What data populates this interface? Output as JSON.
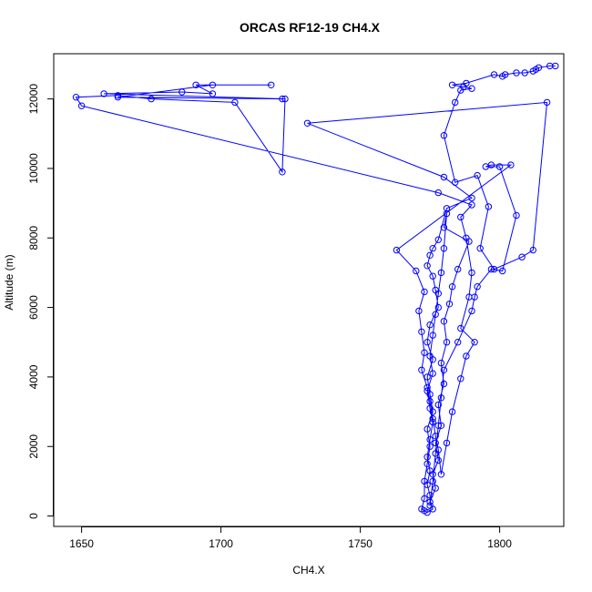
{
  "chart_data": {
    "type": "line",
    "title": "ORCAS RF12-19 CH4.X",
    "xlabel": "CH4.X",
    "ylabel": "Altitude (m)",
    "xlim": [
      1640,
      1823
    ],
    "ylim": [
      -300,
      13300
    ],
    "xticks": [
      1650,
      1700,
      1750,
      1800
    ],
    "yticks": [
      0,
      2000,
      4000,
      6000,
      8000,
      10000,
      12000
    ],
    "grid": false,
    "colors": {
      "series": "#0000ff",
      "axis": "#000000"
    },
    "series": [
      {
        "marker": "open-circle",
        "points": [
          [
            1820,
            12950
          ],
          [
            1818,
            12950
          ],
          [
            1814,
            12900
          ],
          [
            1813,
            12850
          ],
          [
            1812,
            12800
          ],
          [
            1809,
            12750
          ],
          [
            1806,
            12750
          ],
          [
            1802,
            12700
          ],
          [
            1801,
            12650
          ],
          [
            1798,
            12700
          ],
          [
            1788,
            12450
          ],
          [
            1783,
            12400
          ],
          [
            1787,
            12350
          ],
          [
            1790,
            12300
          ],
          [
            1786,
            12250
          ],
          [
            1784,
            11900
          ],
          [
            1780,
            10950
          ],
          [
            1784,
            9600
          ],
          [
            1792,
            9800
          ],
          [
            1796,
            8900
          ],
          [
            1793,
            7700
          ],
          [
            1798,
            7100
          ],
          [
            1808,
            7450
          ],
          [
            1812,
            7650
          ],
          [
            1817,
            11900
          ],
          [
            1731,
            11300
          ],
          [
            1780,
            9750
          ],
          [
            1790,
            9150
          ],
          [
            1781,
            8850
          ],
          [
            1778,
            7950
          ],
          [
            1776,
            7700
          ],
          [
            1775,
            7500
          ],
          [
            1774,
            7200
          ],
          [
            1776,
            6900
          ],
          [
            1777,
            6500
          ],
          [
            1778,
            6000
          ],
          [
            1775,
            5500
          ],
          [
            1774,
            5000
          ],
          [
            1776,
            4500
          ],
          [
            1774,
            4000
          ],
          [
            1775,
            3500
          ],
          [
            1776,
            3000
          ],
          [
            1774,
            2500
          ],
          [
            1775,
            2000
          ],
          [
            1774,
            1500
          ],
          [
            1773,
            1000
          ],
          [
            1773,
            500
          ],
          [
            1772,
            200
          ],
          [
            1773,
            150
          ],
          [
            1774,
            100
          ],
          [
            1776,
            200
          ],
          [
            1775,
            400
          ],
          [
            1777,
            800
          ],
          [
            1776,
            1200
          ],
          [
            1778,
            1600
          ],
          [
            1777,
            2100
          ],
          [
            1779,
            2600
          ],
          [
            1778,
            3200
          ],
          [
            1780,
            3800
          ],
          [
            1779,
            4400
          ],
          [
            1781,
            5000
          ],
          [
            1780,
            5600
          ],
          [
            1782,
            6100
          ],
          [
            1783,
            6600
          ],
          [
            1785,
            7100
          ],
          [
            1789,
            7900
          ],
          [
            1780,
            8300
          ],
          [
            1781,
            8700
          ],
          [
            1780,
            7700
          ],
          [
            1779,
            7000
          ],
          [
            1778,
            6400
          ],
          [
            1777,
            5800
          ],
          [
            1776,
            5200
          ],
          [
            1775,
            4600
          ],
          [
            1776,
            4100
          ],
          [
            1774,
            3600
          ],
          [
            1775,
            3100
          ],
          [
            1776,
            2700
          ],
          [
            1775,
            2200
          ],
          [
            1774,
            1700
          ],
          [
            1775,
            1300
          ],
          [
            1774,
            900
          ],
          [
            1775,
            600
          ],
          [
            1775,
            300
          ],
          [
            1776,
            1000
          ],
          [
            1777,
            1800
          ],
          [
            1778,
            2600
          ],
          [
            1779,
            3400
          ],
          [
            1780,
            4200
          ],
          [
            1785,
            5000
          ],
          [
            1790,
            5900
          ],
          [
            1791,
            6300
          ],
          [
            1792,
            6600
          ],
          [
            1797,
            7100
          ],
          [
            1801,
            7050
          ],
          [
            1806,
            8650
          ],
          [
            1800,
            10050
          ],
          [
            1795,
            10050
          ],
          [
            1797,
            10100
          ],
          [
            1804,
            10100
          ],
          [
            1763,
            7650
          ],
          [
            1770,
            7050
          ],
          [
            1773,
            6450
          ],
          [
            1771,
            5900
          ],
          [
            1772,
            5300
          ],
          [
            1773,
            4700
          ],
          [
            1772,
            4200
          ],
          [
            1774,
            3700
          ],
          [
            1775,
            3300
          ],
          [
            1776,
            2800
          ],
          [
            1777,
            2300
          ],
          [
            1778,
            1900
          ],
          [
            1779,
            1200
          ],
          [
            1781,
            2100
          ],
          [
            1783,
            3000
          ],
          [
            1786,
            3950
          ],
          [
            1788,
            4600
          ],
          [
            1791,
            5000
          ],
          [
            1786,
            5400
          ],
          [
            1789,
            6300
          ],
          [
            1790,
            7000
          ],
          [
            1788,
            8000
          ],
          [
            1786,
            8600
          ],
          [
            1790,
            8950
          ],
          [
            1778,
            9300
          ],
          [
            1650,
            11800
          ],
          [
            1648,
            12050
          ],
          [
            1663,
            12100
          ],
          [
            1675,
            12000
          ],
          [
            1705,
            11900
          ],
          [
            1722,
            9900
          ],
          [
            1723,
            12000
          ],
          [
            1658,
            12150
          ],
          [
            1686,
            12200
          ],
          [
            1697,
            12150
          ],
          [
            1691,
            12400
          ],
          [
            1718,
            12400
          ],
          [
            1697,
            12400
          ],
          [
            1663,
            12050
          ],
          [
            1722,
            12000
          ]
        ]
      }
    ]
  }
}
